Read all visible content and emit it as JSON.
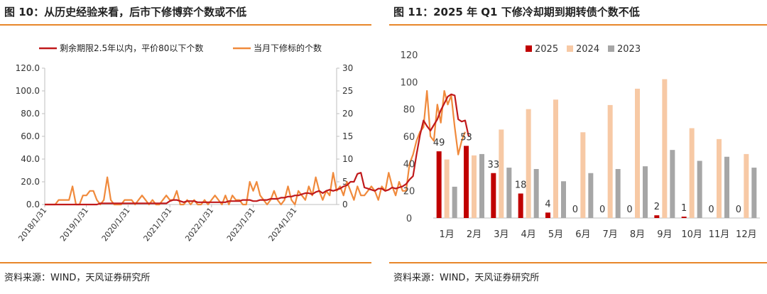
{
  "left": {
    "title": "图 10：从历史经验来看，后市下修博弈个数或不低",
    "source": "资料来源：WIND，天风证券研究所",
    "chart_data": {
      "type": "line",
      "x_ticks": [
        "2018/1/31",
        "2019/1/31",
        "2020/1/31",
        "2021/1/31",
        "2022/1/31",
        "2023/1/31",
        "2024/1/31"
      ],
      "x_start": "2018/1/31",
      "x_end": "2025/1/31",
      "y_left_ticks": [
        "0.0",
        "20.0",
        "40.0",
        "60.0",
        "80.0",
        "100.0",
        "120.0"
      ],
      "y_left_range": [
        0,
        120
      ],
      "y_right_ticks": [
        "0",
        "5",
        "10",
        "15",
        "20",
        "25",
        "30"
      ],
      "y_right_range": [
        0,
        30
      ],
      "series": [
        {
          "name": "剩余期限2.5年以内，平价80以下个数",
          "axis": "left",
          "color": "#c0191b",
          "values": [
            0,
            0,
            0,
            0,
            0,
            0,
            0,
            0,
            0,
            0,
            0,
            0,
            0,
            0,
            0,
            0,
            1,
            1,
            1,
            1,
            1,
            1,
            1,
            1,
            1,
            1,
            1,
            1,
            1,
            1,
            1,
            1,
            1,
            1,
            1,
            1,
            3,
            4,
            4,
            3,
            2,
            3,
            3,
            3,
            2,
            2,
            2,
            2,
            2,
            2,
            2,
            2,
            2,
            3,
            3,
            3,
            3,
            4,
            4,
            4,
            3,
            3,
            4,
            4,
            4,
            5,
            5,
            5,
            6,
            6,
            7,
            7,
            8,
            8,
            9,
            10,
            10,
            9,
            11,
            12,
            10,
            12,
            13,
            12,
            13,
            14,
            16,
            17,
            20,
            20,
            27,
            28,
            15,
            14,
            13,
            12,
            14,
            14,
            12,
            13,
            15,
            14,
            15,
            16,
            18,
            22,
            25,
            44,
            61,
            74,
            69,
            65,
            70,
            75,
            83,
            89,
            95,
            97,
            96,
            75,
            73,
            74,
            60
          ]
        },
        {
          "name": "当月下修标的个数",
          "axis": "right",
          "color": "#f08a3c",
          "values": [
            0,
            0,
            0,
            0,
            1,
            1,
            1,
            1,
            4,
            0,
            0,
            2,
            2,
            3,
            3,
            1,
            0,
            1,
            6,
            1,
            0,
            0,
            0,
            1,
            1,
            1,
            0,
            1,
            2,
            1,
            0,
            1,
            0,
            0,
            1,
            2,
            1,
            1,
            3,
            0,
            0,
            1,
            0,
            1,
            0,
            0,
            1,
            0,
            1,
            2,
            1,
            0,
            2,
            0,
            2,
            1,
            1,
            0,
            0,
            5,
            3,
            5,
            2,
            1,
            0,
            1,
            3,
            1,
            0,
            1,
            4,
            1,
            0,
            3,
            2,
            1,
            4,
            2,
            6,
            3,
            1,
            3,
            2,
            7,
            3,
            4,
            2,
            5,
            3,
            1,
            4,
            2,
            2,
            3,
            4,
            3,
            1,
            4,
            3,
            7,
            4,
            2,
            5,
            3,
            3,
            9,
            11,
            14,
            16,
            17,
            25,
            15,
            14,
            22,
            18,
            25,
            22,
            24,
            17,
            11,
            14,
            16
          ]
        }
      ]
    }
  },
  "right": {
    "title": "图 11：2025 年 Q1 下修冷却期到期转债个数不低",
    "source": "资料来源：WIND，天风证券研究所",
    "chart_data": {
      "type": "bar",
      "categories": [
        "1月",
        "2月",
        "3月",
        "4月",
        "5月",
        "6月",
        "7月",
        "8月",
        "9月",
        "10月",
        "11月",
        "12月"
      ],
      "ylim": [
        0,
        120
      ],
      "y_ticks": [
        "0",
        "20",
        "40",
        "60",
        "80",
        "100",
        "120"
      ],
      "series": [
        {
          "name": "2025",
          "color": "#c00000",
          "values": [
            49,
            53,
            33,
            18,
            4,
            0,
            0,
            0,
            2,
            1,
            0,
            0
          ]
        },
        {
          "name": "2024",
          "color": "#f7c9a5",
          "values": [
            43,
            46,
            65,
            80,
            87,
            63,
            83,
            95,
            102,
            66,
            58,
            47
          ]
        },
        {
          "name": "2023",
          "color": "#a6a6a6",
          "values": [
            23,
            47,
            37,
            36,
            27,
            33,
            36,
            38,
            50,
            42,
            45,
            37
          ]
        }
      ],
      "data_labels": [
        "49",
        "53",
        "33",
        "18",
        "4",
        "0",
        "0",
        "0",
        "2",
        "1",
        "0",
        "0"
      ]
    }
  }
}
